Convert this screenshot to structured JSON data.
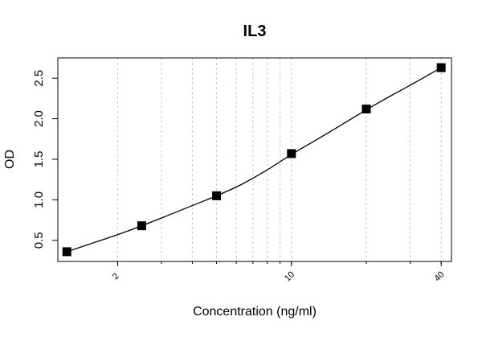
{
  "chart_data": {
    "type": "scatter",
    "title": "IL3",
    "xlabel": "Concentration (ng/ml)",
    "ylabel": "OD",
    "x_scale": "log",
    "xlim": [
      1.15,
      44
    ],
    "ylim": [
      0.24,
      2.75
    ],
    "x_ticks": [
      2,
      10,
      40
    ],
    "x_tick_labels": [
      "2",
      "10",
      "40"
    ],
    "y_ticks": [
      0.5,
      1.0,
      1.5,
      2.0,
      2.5
    ],
    "y_tick_labels": [
      "0.5",
      "1.0",
      "1.5",
      "2.0",
      "2.5"
    ],
    "x_minor_gridlines": [
      2,
      3,
      4,
      5,
      6,
      7,
      8,
      9,
      10,
      20,
      30,
      40
    ],
    "grid": "vertical dotted at log decades",
    "series": [
      {
        "marker": "square",
        "color": "#000000",
        "x": [
          1.25,
          2.5,
          5,
          10,
          20,
          40
        ],
        "y": [
          0.36,
          0.68,
          1.05,
          1.57,
          2.12,
          2.63
        ]
      }
    ],
    "fit_curve": {
      "type": "smooth",
      "color": "#000000",
      "x": [
        1.25,
        1.6,
        2.0,
        2.5,
        3.2,
        4.0,
        5.0,
        6.3,
        8.0,
        10,
        12.6,
        16,
        20,
        25,
        32,
        40
      ],
      "y": [
        0.36,
        0.47,
        0.57,
        0.68,
        0.81,
        0.93,
        1.05,
        1.19,
        1.37,
        1.56,
        1.74,
        1.93,
        2.11,
        2.28,
        2.46,
        2.63
      ]
    }
  }
}
